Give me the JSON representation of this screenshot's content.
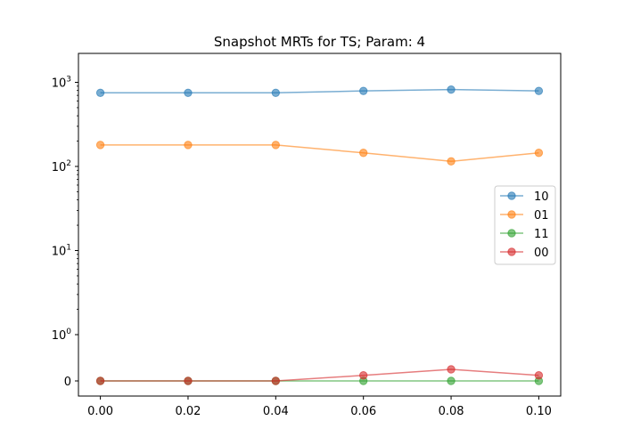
{
  "chart_data": {
    "type": "line",
    "title": "Snapshot MRTs for TS; Param: 4",
    "xlabel": "",
    "ylabel": "",
    "yscale": "symlog",
    "x": [
      0.0,
      0.02,
      0.04,
      0.06,
      0.08,
      0.1
    ],
    "x_tick_labels": [
      "0.00",
      "0.02",
      "0.04",
      "0.06",
      "0.08",
      "0.10"
    ],
    "xlim": [
      -0.005,
      0.105
    ],
    "y_tick_labels": [
      {
        "base": "0",
        "exp": ""
      },
      {
        "base": "10",
        "exp": "0"
      },
      {
        "base": "10",
        "exp": "1"
      },
      {
        "base": "10",
        "exp": "2"
      },
      {
        "base": "10",
        "exp": "3"
      }
    ],
    "grid": false,
    "legend_position": "center-right",
    "series": [
      {
        "name": "10",
        "color": "#1f77b4",
        "values": [
          750,
          750,
          750,
          790,
          820,
          790
        ]
      },
      {
        "name": "01",
        "color": "#ff7f0e",
        "values": [
          180,
          180,
          180,
          145,
          115,
          145
        ]
      },
      {
        "name": "11",
        "color": "#2ca02c",
        "values": [
          0,
          0,
          0,
          0,
          0,
          0
        ]
      },
      {
        "name": "00",
        "color": "#d62728",
        "values": [
          0,
          0,
          0,
          0.12,
          0.25,
          0.12
        ]
      }
    ]
  }
}
